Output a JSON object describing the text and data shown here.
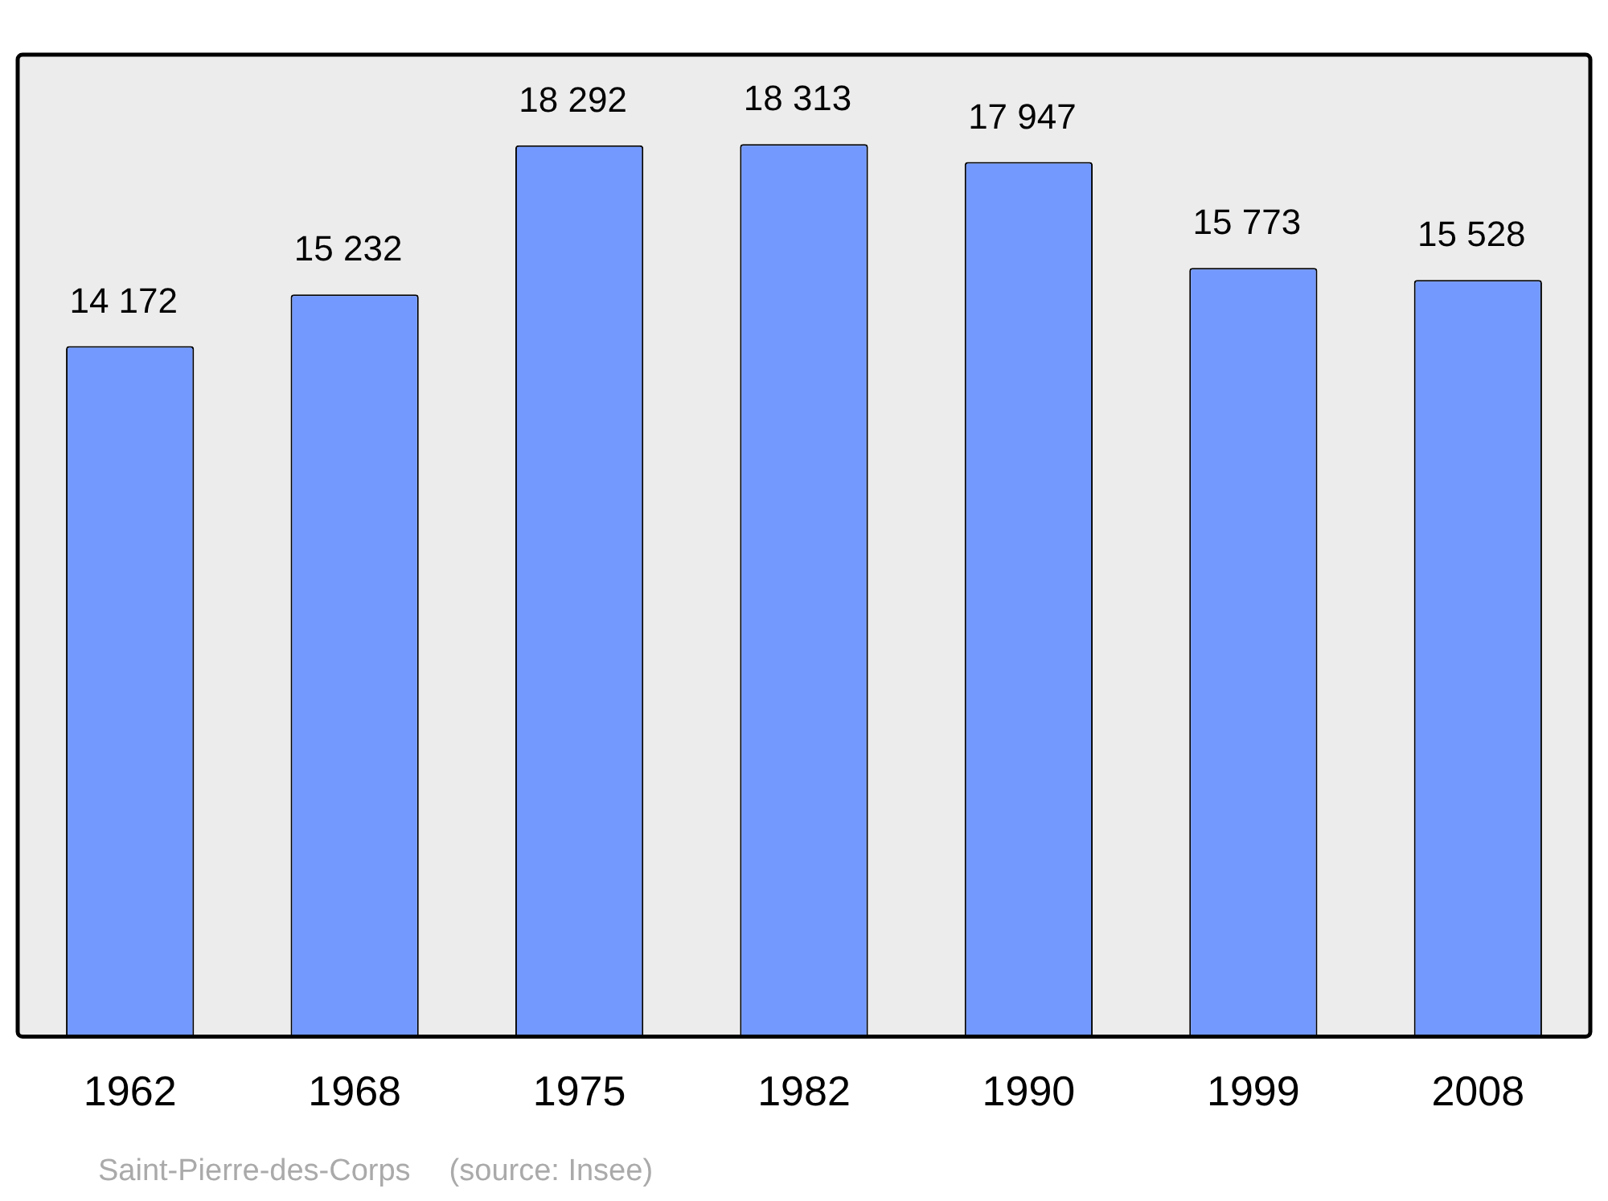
{
  "chart_data": {
    "type": "bar",
    "categories": [
      "1962",
      "1968",
      "1975",
      "1982",
      "1990",
      "1999",
      "2008"
    ],
    "values": [
      14172,
      15232,
      18292,
      18313,
      17947,
      15773,
      15528
    ],
    "value_labels": [
      "14 172",
      "15 232",
      "18 292",
      "18 313",
      "17 947",
      "15 773",
      "15 528"
    ],
    "color": "#7399ff",
    "ylim": [
      0,
      20150
    ],
    "grid": false,
    "legend": false,
    "annotations": [
      "Saint-Pierre-des-Corps",
      "(source: Insee)"
    ]
  }
}
